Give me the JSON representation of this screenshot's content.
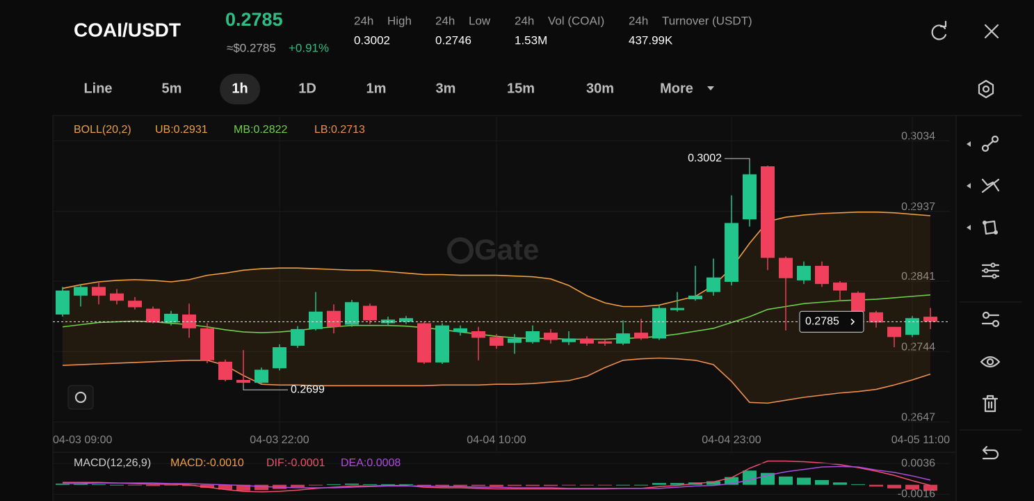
{
  "header": {
    "pair": "COAI/USDT",
    "price": "0.2785",
    "usd": "≈$0.2785",
    "change": "+0.91%",
    "stats": [
      {
        "period": "24h",
        "label": "High",
        "value": "0.3002"
      },
      {
        "period": "24h",
        "label": "Low",
        "value": "0.2746"
      },
      {
        "period": "24h",
        "label": "Vol (COAI)",
        "value": "1.53M"
      },
      {
        "period": "24h",
        "label": "Turnover (USDT)",
        "value": "437.99K"
      }
    ]
  },
  "intervals": {
    "items": [
      "Line",
      "5m",
      "1h",
      "1D",
      "1m",
      "3m",
      "15m",
      "30m",
      "More"
    ],
    "selected": 2
  },
  "chart_data": [
    {
      "type": "candlestick",
      "watermark": "Gate",
      "indicator": [
        {
          "text": "BOLL(20,2)",
          "color": "#e8a04a"
        },
        {
          "text": "UB:0.2931",
          "color": "#f0a040"
        },
        {
          "text": "MB:0.2822",
          "color": "#6fd14b"
        },
        {
          "text": "LB:0.2713",
          "color": "#f09050"
        }
      ],
      "categories": [
        "04-03 09:00",
        null,
        null,
        null,
        null,
        null,
        null,
        null,
        null,
        null,
        null,
        null,
        "04-03 22:00",
        null,
        null,
        null,
        null,
        null,
        null,
        null,
        null,
        null,
        null,
        null,
        "04-04 10:00",
        null,
        null,
        null,
        null,
        null,
        null,
        null,
        null,
        null,
        null,
        null,
        null,
        "04-04 23:00",
        null,
        null,
        null,
        null,
        null,
        null,
        null,
        null,
        null,
        "04-05 11:00",
        null
      ],
      "open": [
        0.2795,
        0.2821,
        0.2833,
        0.2824,
        0.2814,
        0.2803,
        0.2784,
        0.2795,
        0.2776,
        0.273,
        0.2705,
        0.2701,
        0.2721,
        0.2752,
        0.2775,
        0.28,
        0.2781,
        0.2807,
        0.2783,
        0.2785,
        0.2783,
        0.2729,
        0.2771,
        0.2772,
        0.2764,
        0.2756,
        0.2757,
        0.277,
        0.2757,
        0.2762,
        0.2758,
        0.2755,
        0.277,
        0.2762,
        0.2801,
        0.2816,
        0.2826,
        0.284,
        0.2926,
        0.2999,
        0.2873,
        0.2842,
        0.2862,
        0.2839,
        0.2825,
        0.2798,
        0.2778,
        0.2767,
        0.2792
      ],
      "high": [
        0.2833,
        0.2837,
        0.284,
        0.283,
        0.2819,
        0.2806,
        0.28,
        0.281,
        0.2783,
        0.2733,
        0.2746,
        0.2722,
        0.2754,
        0.2779,
        0.2826,
        0.2809,
        0.2815,
        0.281,
        0.2792,
        0.2793,
        0.2785,
        0.2783,
        0.278,
        0.2778,
        0.2768,
        0.2768,
        0.278,
        0.2775,
        0.2772,
        0.2765,
        0.2761,
        0.2787,
        0.2789,
        0.2808,
        0.2826,
        0.2862,
        0.2872,
        0.2959,
        0.3002,
        0.3,
        0.2875,
        0.2868,
        0.2868,
        0.2841,
        0.2827,
        0.28,
        0.2778,
        0.2793,
        0.2804
      ],
      "low": [
        0.2792,
        0.2806,
        0.2809,
        0.2809,
        0.2802,
        0.2783,
        0.278,
        0.2763,
        0.2728,
        0.2703,
        0.2699,
        0.27,
        0.2718,
        0.2749,
        0.2773,
        0.2769,
        0.2778,
        0.2782,
        0.278,
        0.2782,
        0.2727,
        0.2727,
        0.2766,
        0.2732,
        0.2748,
        0.2741,
        0.2755,
        0.2755,
        0.2753,
        0.2752,
        0.2752,
        0.2753,
        0.276,
        0.276,
        0.2799,
        0.2814,
        0.2821,
        0.2835,
        0.2916,
        0.2856,
        0.2773,
        0.2837,
        0.2833,
        0.2813,
        0.2797,
        0.2777,
        0.275,
        0.2764,
        0.2775
      ],
      "close": [
        0.2828,
        0.2833,
        0.2821,
        0.2814,
        0.2805,
        0.2784,
        0.2796,
        0.2776,
        0.2732,
        0.2705,
        0.2701,
        0.2719,
        0.275,
        0.2775,
        0.2799,
        0.2778,
        0.2812,
        0.2787,
        0.2788,
        0.279,
        0.2729,
        0.278,
        0.2776,
        0.2763,
        0.2752,
        0.2762,
        0.2772,
        0.276,
        0.2762,
        0.2755,
        0.2755,
        0.2769,
        0.2762,
        0.2804,
        0.2804,
        0.2821,
        0.2846,
        0.2921,
        0.2988,
        0.2873,
        0.2845,
        0.2862,
        0.2837,
        0.2828,
        0.2799,
        0.2784,
        0.2764,
        0.279,
        0.2785
      ],
      "up_color": "#22c58b",
      "down_color": "#f0405c",
      "boll": {
        "upper": {
          "color": "#f0a040",
          "values": [
            0.2831,
            0.2836,
            0.284,
            0.2842,
            0.2843,
            0.2842,
            0.284,
            0.2843,
            0.2849,
            0.2852,
            0.2856,
            0.2858,
            0.2859,
            0.2859,
            0.2858,
            0.2857,
            0.2856,
            0.2856,
            0.2854,
            0.2852,
            0.285,
            0.285,
            0.2849,
            0.2849,
            0.2849,
            0.2848,
            0.2847,
            0.2844,
            0.2835,
            0.2821,
            0.2811,
            0.2806,
            0.2806,
            0.2808,
            0.2814,
            0.282,
            0.2835,
            0.2859,
            0.2893,
            0.2923,
            0.2929,
            0.2932,
            0.2934,
            0.2935,
            0.2936,
            0.2936,
            0.2935,
            0.2933,
            0.2931
          ]
        },
        "middle": {
          "color": "#6fd14b",
          "values": [
            0.2778,
            0.2781,
            0.2784,
            0.2785,
            0.2786,
            0.2785,
            0.2783,
            0.2781,
            0.2778,
            0.2774,
            0.2771,
            0.277,
            0.2771,
            0.2773,
            0.2776,
            0.2778,
            0.278,
            0.278,
            0.278,
            0.2779,
            0.2777,
            0.2774,
            0.2771,
            0.2768,
            0.2765,
            0.2763,
            0.2762,
            0.2762,
            0.2761,
            0.2761,
            0.2761,
            0.2762,
            0.2763,
            0.2765,
            0.2768,
            0.2772,
            0.2776,
            0.2784,
            0.2792,
            0.2802,
            0.2806,
            0.281,
            0.2812,
            0.2814,
            0.2815,
            0.2816,
            0.2818,
            0.282,
            0.2822
          ]
        },
        "lower": {
          "color": "#f09050",
          "values": [
            0.2725,
            0.2726,
            0.2727,
            0.2728,
            0.2729,
            0.273,
            0.2731,
            0.2732,
            0.2732,
            0.2725,
            0.2711,
            0.2699,
            0.2698,
            0.2698,
            0.2697,
            0.2697,
            0.2697,
            0.2697,
            0.2697,
            0.2697,
            0.2697,
            0.2698,
            0.2698,
            0.2698,
            0.2699,
            0.2699,
            0.27,
            0.2702,
            0.2704,
            0.271,
            0.2722,
            0.2732,
            0.2734,
            0.2735,
            0.2734,
            0.2732,
            0.2726,
            0.2703,
            0.2674,
            0.2673,
            0.2677,
            0.2681,
            0.2684,
            0.2687,
            0.2689,
            0.2692,
            0.2698,
            0.2705,
            0.2713
          ]
        },
        "fill": "#f08c1e"
      },
      "ylim": [
        0.2636,
        0.3067
      ],
      "yticks": [
        0.3034,
        0.2937,
        0.2841,
        0.2744,
        0.2647
      ],
      "grid": true
    },
    {
      "type": "macd",
      "indicator": [
        {
          "text": "MACD(12,26,9)",
          "color": "#cfcfcf"
        },
        {
          "text": "MACD:-0.0010",
          "color": "#f0a040"
        },
        {
          "text": "DIF:-0.0001",
          "color": "#f0506e"
        },
        {
          "text": "DEA:0.0008",
          "color": "#b04ce0"
        }
      ],
      "histogram": [
        0.0002,
        0.0002,
        0.0001,
        0,
        -0.0001,
        -0.0002,
        -0.0001,
        -0.0002,
        -0.0005,
        -0.0008,
        -0.001,
        -0.0009,
        -0.0007,
        -0.0004,
        -0.0001,
        0.0001,
        0.0002,
        0.0001,
        0.0001,
        0.0001,
        -0.0002,
        -0.0002,
        -0.0002,
        -0.0002,
        -0.0003,
        -0.0002,
        -0.0002,
        -0.0002,
        -0.0001,
        -0.0001,
        -0.0001,
        0,
        0,
        0.0003,
        0.0003,
        0.0004,
        0.0006,
        0.0013,
        0.0024,
        0.002,
        0.0014,
        0.0012,
        0.0008,
        0.0004,
        0.0001,
        -0.0003,
        -0.0006,
        -0.0008,
        -0.001
      ],
      "up_color": "#22c58b",
      "down_color": "#f0405c",
      "dif": {
        "color": "#f0506e",
        "values": [
          0.0004,
          0.0004,
          0.0004,
          0.0003,
          0.0002,
          0.0001,
          0.0001,
          0,
          -0.0004,
          -0.0008,
          -0.0011,
          -0.0012,
          -0.0011,
          -0.0009,
          -0.0006,
          -0.0004,
          -0.0002,
          -0.0002,
          -0.0001,
          -0.0001,
          -0.0004,
          -0.0005,
          -0.0005,
          -0.0006,
          -0.0007,
          -0.0007,
          -0.0007,
          -0.0007,
          -0.0007,
          -0.0007,
          -0.0007,
          -0.0006,
          -0.0006,
          -0.0003,
          -0.0001,
          0.0002,
          0.0005,
          0.0012,
          0.0028,
          0.004,
          0.004,
          0.0039,
          0.0037,
          0.0034,
          0.0029,
          0.0023,
          0.0016,
          0.0007,
          -0.0001
        ]
      },
      "dea": {
        "color": "#b04ce0",
        "values": [
          0.0002,
          0.0002,
          0.0003,
          0.0003,
          0.0003,
          0.0003,
          0.0002,
          0.0002,
          0.0001,
          0,
          -0.0001,
          -0.0003,
          -0.0004,
          -0.0005,
          -0.0005,
          -0.0005,
          -0.0004,
          -0.0003,
          -0.0002,
          -0.0002,
          -0.0002,
          -0.0003,
          -0.0003,
          -0.0004,
          -0.0004,
          -0.0005,
          -0.0005,
          -0.0005,
          -0.0006,
          -0.0006,
          -0.0006,
          -0.0006,
          -0.0006,
          -0.0006,
          -0.0004,
          -0.0002,
          -0.0001,
          0.0002,
          0.0008,
          0.0016,
          0.0022,
          0.0026,
          0.003,
          0.0031,
          0.003,
          0.0025,
          0.0021,
          0.0015,
          0.0008
        ]
      },
      "ylim": [
        -0.0025,
        0.0049
      ],
      "yticks": [
        0.0036,
        -0.0016
      ]
    }
  ]
}
